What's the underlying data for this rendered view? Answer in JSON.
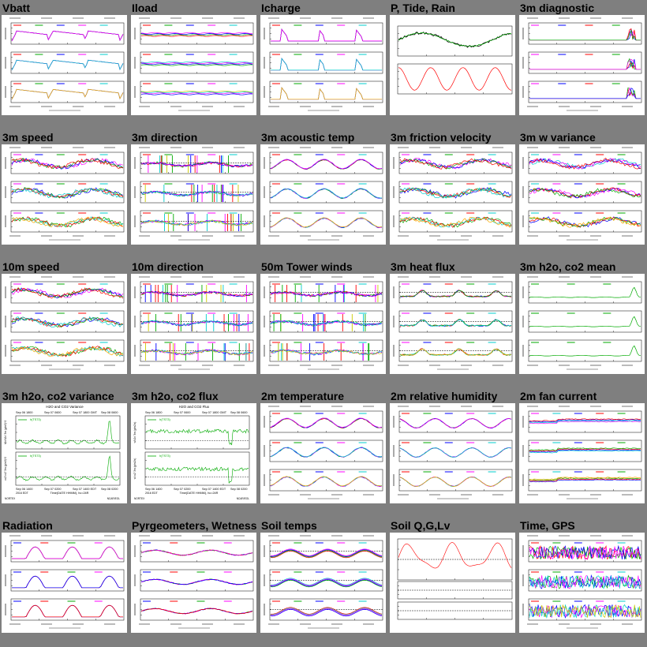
{
  "tiles": [
    {
      "title": "Vbatt",
      "type": "panels3",
      "variant": "vbatt",
      "trace_colors": [
        "#ff0000",
        "#00aa00",
        "#0000ff",
        "#ff00ff",
        "#00cccc",
        "#ffaa00"
      ]
    },
    {
      "title": "Iload",
      "type": "panels3",
      "variant": "flat",
      "trace_colors": [
        "#ff0000",
        "#00aa00",
        "#0000ff",
        "#ff00ff",
        "#00cccc",
        "#cccc00"
      ]
    },
    {
      "title": "Icharge",
      "type": "panels3",
      "variant": "spikes",
      "trace_colors": [
        "#ff0000",
        "#00aa00",
        "#0000ff",
        "#ff00ff",
        "#00cccc",
        "#ffaa00"
      ]
    },
    {
      "title": "P, Tide, Rain",
      "type": "ptide"
    },
    {
      "title": "3m diagnostic",
      "type": "panels3",
      "variant": "diag",
      "trace_colors": [
        "#ff00ff",
        "#0000ff",
        "#ff0000",
        "#00aa00"
      ]
    },
    {
      "title": "3m speed",
      "type": "panels3",
      "variant": "noisy",
      "trace_colors": [
        "#ff00ff",
        "#0000ff",
        "#00aa00",
        "#ff0000",
        "#00cccc",
        "#ffaa00"
      ]
    },
    {
      "title": "3m direction",
      "type": "panels3",
      "variant": "direction",
      "trace_colors": [
        "#ff0000",
        "#00aa00",
        "#0000ff",
        "#ff00ff",
        "#00cccc",
        "#cccc00"
      ]
    },
    {
      "title": "3m acoustic temp",
      "type": "panels3",
      "variant": "temp",
      "trace_colors": [
        "#ff0000",
        "#00aa00",
        "#0000ff",
        "#ff00ff",
        "#00cccc",
        "#ffaa00"
      ]
    },
    {
      "title": "3m friction velocity",
      "type": "panels3",
      "variant": "noisy",
      "trace_colors": [
        "#ff00ff",
        "#0000ff",
        "#00aa00",
        "#ff0000",
        "#00cccc",
        "#ffaa00"
      ]
    },
    {
      "title": "3m w variance",
      "type": "panels3",
      "variant": "noisy",
      "trace_colors": [
        "#00cccc",
        "#ff00ff",
        "#0000ff",
        "#ff0000",
        "#00aa00",
        "#ffaa00"
      ]
    },
    {
      "title": "10m speed",
      "type": "panels3",
      "variant": "noisy",
      "trace_colors": [
        "#ff00ff",
        "#0000ff",
        "#00aa00",
        "#ff0000",
        "#00cccc",
        "#ffaa00"
      ]
    },
    {
      "title": "10m direction",
      "type": "panels3",
      "variant": "direction",
      "trace_colors": [
        "#ff0000",
        "#00aa00",
        "#0000ff",
        "#ff00ff",
        "#00cccc",
        "#cccc00"
      ]
    },
    {
      "title": "50m Tower winds",
      "type": "panels3",
      "variant": "direction",
      "trace_colors": [
        "#ff0000",
        "#00aa00",
        "#0000ff",
        "#ff00ff",
        "#00cccc",
        "#cccc00"
      ]
    },
    {
      "title": "3m heat flux",
      "type": "panels3",
      "variant": "flux",
      "trace_colors": [
        "#ff00ff",
        "#0000ff",
        "#ff0000",
        "#00aa00",
        "#00cccc",
        "#ffaa00"
      ]
    },
    {
      "title": "3m h2o, co2 mean",
      "type": "panels3",
      "variant": "h2o",
      "trace_colors": [
        "#00aa00",
        "#00aa00",
        "#00aa00"
      ]
    },
    {
      "title": "3m h2o, co2 variance",
      "type": "detail",
      "variant": "variance"
    },
    {
      "title": "3m h2o, co2 flux",
      "type": "detail",
      "variant": "flux"
    },
    {
      "title": "2m temperature",
      "type": "panels3",
      "variant": "temp",
      "trace_colors": [
        "#ff0000",
        "#00aa00",
        "#0000ff",
        "#ff00ff",
        "#00cccc",
        "#ffaa00"
      ]
    },
    {
      "title": "2m relative humidity",
      "type": "panels3",
      "variant": "humid",
      "trace_colors": [
        "#ff0000",
        "#00aa00",
        "#0000ff",
        "#ff00ff",
        "#00cccc",
        "#ffaa00"
      ]
    },
    {
      "title": "2m fan current",
      "type": "panels3",
      "variant": "fan",
      "trace_colors": [
        "#ff00ff",
        "#00cccc",
        "#0000ff",
        "#ff0000",
        "#00aa00",
        "#ffaa00"
      ]
    },
    {
      "title": "Radiation",
      "type": "panels3",
      "variant": "radiation",
      "trace_colors": [
        "#0000ff",
        "#ff0000",
        "#00aa00",
        "#ff00ff"
      ]
    },
    {
      "title": "Pyrgeometers, Wetness",
      "type": "panels3",
      "variant": "pyrg",
      "trace_colors": [
        "#0000ff",
        "#ff0000",
        "#00aa00",
        "#ff00ff"
      ]
    },
    {
      "title": "Soil temps",
      "type": "panels3",
      "variant": "soil",
      "trace_colors": [
        "#ff0000",
        "#00aa00",
        "#0000ff",
        "#ff00ff",
        "#00cccc"
      ]
    },
    {
      "title": "Soil Q,G,Lv",
      "type": "soilq"
    },
    {
      "title": "Time, GPS",
      "type": "panels3",
      "variant": "gps",
      "trace_colors": [
        "#ff0000",
        "#00aa00",
        "#0000ff",
        "#ff00ff",
        "#00cccc",
        "#cccc00"
      ]
    }
  ],
  "plot_text": {
    "variance_title": "H2O and CO2 Variance",
    "flux_title": "H2O and CO2 Flux",
    "top_dates": [
      "Sep 06 1800",
      "Sep 07 0600",
      "Sep 07 1800 GMT",
      "Sep 08 0600"
    ],
    "bottom_dates": [
      "Sep 06 1400",
      "Sep 07 0200",
      "Sep 07 1400 EDT",
      "Sep 08 0200"
    ],
    "year_label": "2016 EDT",
    "axis_caption": "Time(DATE HHMM), hc=24R",
    "site_label": "NORTEX",
    "legend_label": "h(TS73)",
    "variance_ylabels": [
      "h2o'h2o' 3m (g/m3)^2",
      "co2'co2' 3m (g/m3)^2"
    ],
    "flux_ylabels": [
      "w'h2o' 3m (g/m2/s)",
      "w'co2' 3m (g/m2/s)"
    ],
    "credit": "NCAR/EOL"
  }
}
